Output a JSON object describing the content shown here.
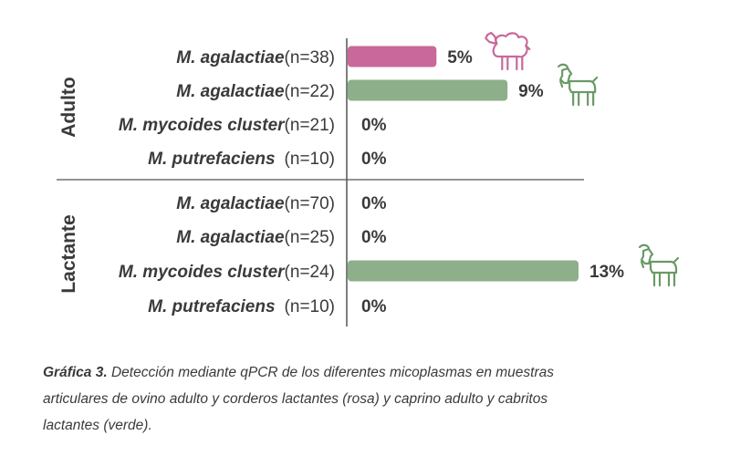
{
  "chart_data": {
    "type": "bar",
    "orientation": "horizontal",
    "xlim": [
      0,
      13
    ],
    "groups": [
      {
        "label": "Adulto",
        "rows": [
          {
            "name": "M. agalactiae",
            "n": "(n=38)",
            "value": 5,
            "label": "5%",
            "color": "#c9689a",
            "icon": "sheep-icon"
          },
          {
            "name": "M. agalactiae",
            "n": "(n=22)",
            "value": 9,
            "label": "9%",
            "color": "#8daf8a",
            "icon": "goat-icon"
          },
          {
            "name": "M. mycoides cluster",
            "n": "(n=21)",
            "value": 0,
            "label": "0%",
            "color": "#8daf8a"
          },
          {
            "name": "M. putrefaciens",
            "n": "(n=10)",
            "value": 0,
            "label": "0%",
            "color": "#8daf8a"
          }
        ]
      },
      {
        "label": "Lactante",
        "rows": [
          {
            "name": "M. agalactiae",
            "n": "(n=70)",
            "value": 0,
            "label": "0%",
            "color": "#c9689a"
          },
          {
            "name": "M. agalactiae",
            "n": "(n=25)",
            "value": 0,
            "label": "0%",
            "color": "#8daf8a"
          },
          {
            "name": "M. mycoides cluster",
            "n": "(n=24)",
            "value": 13,
            "label": "13%",
            "color": "#8daf8a",
            "icon": "goat-icon"
          },
          {
            "name": "M. putrefaciens",
            "n": "(n=10)",
            "value": 0,
            "label": "0%",
            "color": "#8daf8a"
          }
        ]
      }
    ]
  },
  "caption": {
    "lead": "Gráfica 3.",
    "text": " Detección mediante qPCR de los diferentes micoplasmas en muestras articulares de ovino adulto y corderos lactantes (rosa) y caprino adulto y cabritos lactantes (verde)."
  },
  "colors": {
    "sheep": "#c9689a",
    "goat": "#6a9a66",
    "axis": "#555555"
  }
}
